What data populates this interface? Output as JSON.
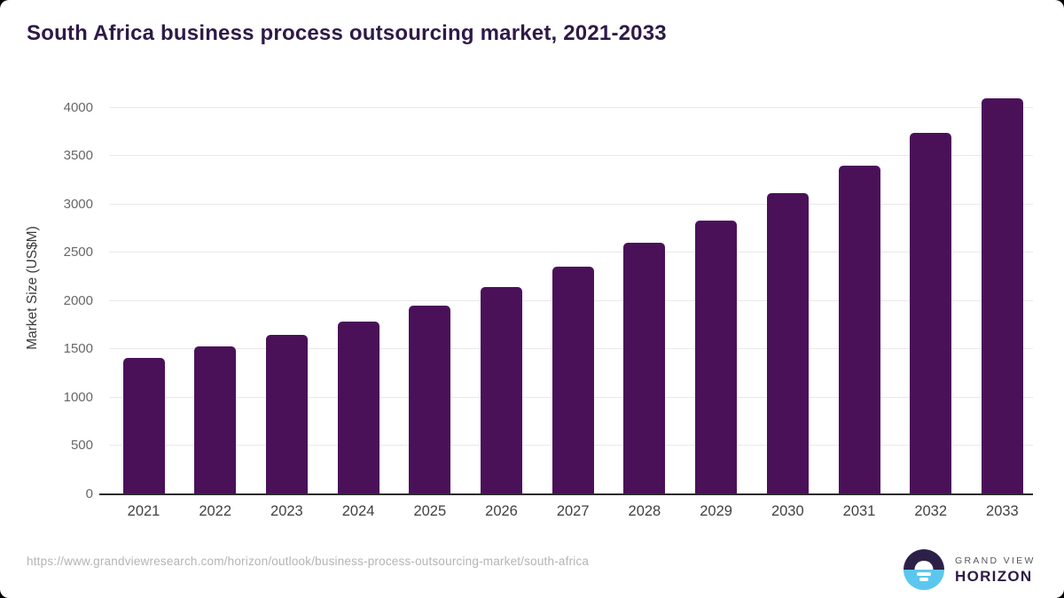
{
  "title": "South Africa business process outsourcing market, 2021-2033",
  "chart_data": {
    "type": "bar",
    "title": "South Africa business process outsourcing market, 2021-2033",
    "categories": [
      "2021",
      "2022",
      "2023",
      "2024",
      "2025",
      "2026",
      "2027",
      "2028",
      "2029",
      "2030",
      "2031",
      "2032",
      "2033"
    ],
    "values": [
      1415,
      1530,
      1650,
      1785,
      1955,
      2145,
      2360,
      2600,
      2835,
      3115,
      3405,
      3740,
      4095
    ],
    "xlabel": "",
    "ylabel": "Market Size (US$M)",
    "yticks": [
      0,
      500,
      1000,
      1500,
      2000,
      2500,
      3000,
      3500,
      4000
    ],
    "ylim": [
      0,
      4200
    ],
    "grid": true,
    "legend_position": "none"
  },
  "colors": {
    "bar": "#4a1159",
    "title": "#2e1a47",
    "axis": "#2b2b2b",
    "grid": "#e9e9e9",
    "logo_dark": "#2d2048",
    "logo_blue": "#5bc7ef"
  },
  "footer": {
    "source_url": "https://www.grandviewresearch.com/horizon/outlook/business-process-outsourcing-market/south-africa",
    "logo": {
      "line1": "GRAND VIEW",
      "line2": "HORIZON",
      "icon": "horizon-sun-icon"
    }
  }
}
